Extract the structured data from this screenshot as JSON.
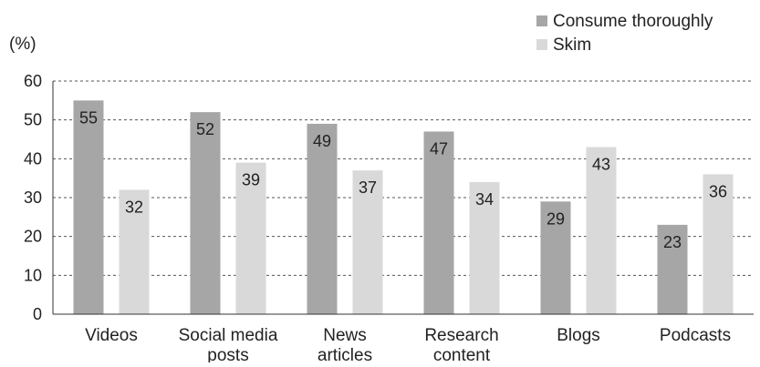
{
  "chart_data": {
    "type": "bar",
    "unit_label": "(%)",
    "categories": [
      [
        "Videos"
      ],
      [
        "Social media",
        "posts"
      ],
      [
        "News",
        "articles"
      ],
      [
        "Research",
        "content"
      ],
      [
        "Blogs"
      ],
      [
        "Podcasts"
      ]
    ],
    "series": [
      {
        "name": "Consume thoroughly",
        "color": "#a6a6a6",
        "values": [
          55,
          52,
          49,
          47,
          29,
          23
        ]
      },
      {
        "name": "Skim",
        "color": "#d9d9d9",
        "values": [
          32,
          39,
          37,
          34,
          43,
          36
        ]
      }
    ],
    "ylim": [
      0,
      60
    ],
    "yticks": [
      0,
      10,
      20,
      30,
      40,
      50,
      60
    ],
    "grid": true,
    "grid_style": "dashed",
    "legend_position": "top-right",
    "data_labels": true
  }
}
